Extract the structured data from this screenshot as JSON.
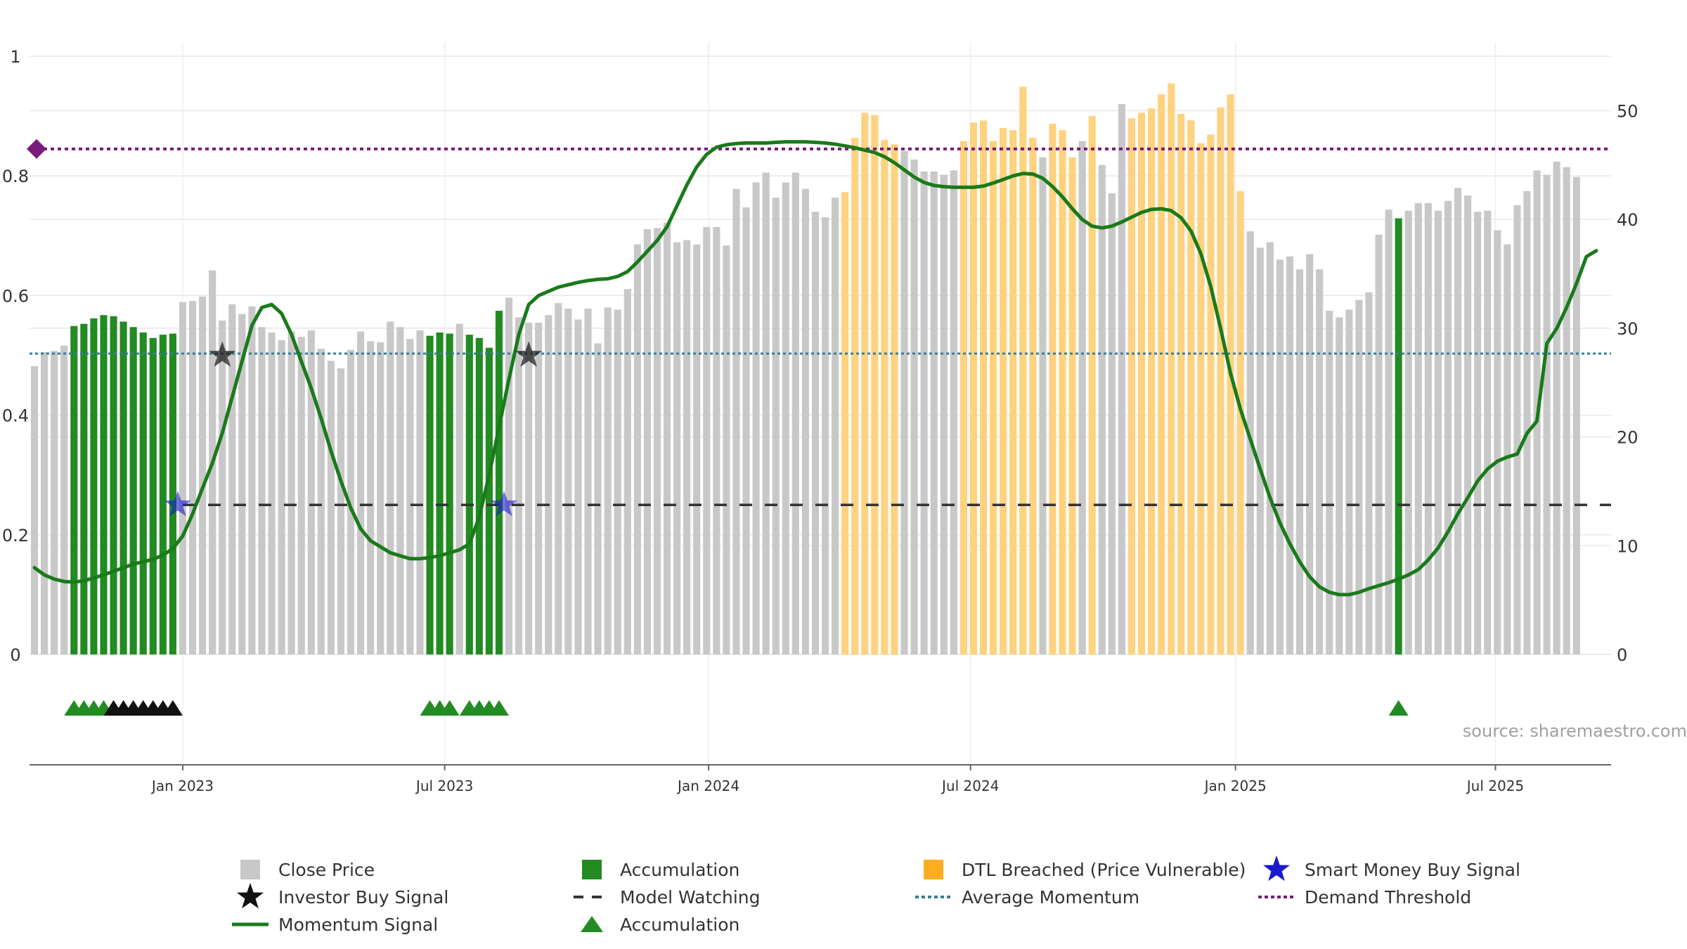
{
  "chart_data": {
    "type": "bar",
    "title": "",
    "source": "source: sharemaestro.com",
    "left_axis": {
      "range": [
        0,
        1
      ],
      "ticks": [
        {
          "v": 0,
          "label": "0"
        },
        {
          "v": 0.2,
          "label": "0.2"
        },
        {
          "v": 0.4,
          "label": "0.4"
        },
        {
          "v": 0.6,
          "label": "0.6"
        },
        {
          "v": 0.8,
          "label": "0.8"
        },
        {
          "v": 1,
          "label": "1"
        }
      ]
    },
    "right_axis": {
      "range": [
        0,
        55
      ],
      "ticks": [
        {
          "v": 0,
          "label": "0"
        },
        {
          "v": 10,
          "label": "10"
        },
        {
          "v": 20,
          "label": "20"
        },
        {
          "v": 30,
          "label": "30"
        },
        {
          "v": 40,
          "label": "40"
        },
        {
          "v": 50,
          "label": "50"
        }
      ]
    },
    "x_axis": {
      "n": 160,
      "ticks": [
        {
          "i": 15,
          "label": "Jan 2023"
        },
        {
          "i": 41.5,
          "label": "Jul 2023"
        },
        {
          "i": 68.2,
          "label": "Jan 2024"
        },
        {
          "i": 94.7,
          "label": "Jul 2024"
        },
        {
          "i": 121.5,
          "label": "Jan 2025"
        },
        {
          "i": 147.8,
          "label": "Jul 2025"
        }
      ]
    },
    "close_price": [
      26.5,
      27.8,
      27.9,
      28.4,
      30.2,
      30.4,
      30.9,
      31.2,
      31.1,
      30.6,
      30.1,
      29.6,
      29.1,
      29.4,
      29.5,
      32.4,
      32.5,
      32.9,
      35.3,
      30.7,
      32.2,
      31.3,
      32,
      30.1,
      29.6,
      28.9,
      29.7,
      29.2,
      29.8,
      28.1,
      27,
      26.3,
      28,
      29.7,
      28.8,
      28.7,
      30.6,
      30.1,
      29,
      29.8,
      29.3,
      29.6,
      29.5,
      30.4,
      29.4,
      29.1,
      28.2,
      31.6,
      32.8,
      31,
      30.5,
      30.5,
      31.2,
      32.3,
      31.8,
      30.8,
      31.8,
      28.6,
      31.9,
      31.7,
      33.6,
      37.7,
      39.1,
      39.2,
      39.7,
      37.9,
      38.1,
      37.7,
      39.3,
      39.3,
      37.6,
      42.8,
      41.1,
      43.4,
      44.3,
      42,
      43.4,
      44.3,
      42.8,
      40.7,
      40.2,
      42,
      42.5,
      47.5,
      49.8,
      49.6,
      47.3,
      46.9,
      46.3,
      45.5,
      44.4,
      44.4,
      44.1,
      44.5,
      47.2,
      48.9,
      49.1,
      47.2,
      48.4,
      48.2,
      52.2,
      47.5,
      45.7,
      48.8,
      48.2,
      45.7,
      47.2,
      49.5,
      45,
      42.4,
      50.6,
      49.3,
      49.8,
      50.2,
      51.5,
      52.5,
      49.7,
      49.1,
      47,
      47.8,
      50.3,
      51.5,
      42.6,
      38.9,
      37.4,
      37.9,
      36.3,
      36.6,
      35.4,
      36.8,
      35.4,
      31.6,
      31,
      31.7,
      32.6,
      33.3,
      38.6,
      40.9,
      40.1,
      40.8,
      41.5,
      41.5,
      40.8,
      41.7,
      42.9,
      42.2,
      40.7,
      40.8,
      39,
      37.7,
      41.3,
      42.6,
      44.5,
      44.1,
      45.3,
      44.8,
      43.9
    ],
    "bar_state": "GGGGGGGGGGGGGGGGGGGGGGGGGGGGGGGGGGGGGGGGGGGGGGGGGGGGGGGGGGGGGGGGGGGGGGGGGGGGGGGGGGGGGGGGGGGGGGGGGGGGGGGGGGGGGGGGGGGGGGGGGGGGGGGGGGGGGGGGGGGGGGGGGGGGGGGGGG",
    "accumulation_bars": [
      4,
      5,
      6,
      7,
      8,
      9,
      10,
      11,
      12,
      13,
      14,
      40,
      41,
      42,
      44,
      45,
      46,
      47,
      138
    ],
    "dtl_bars": [
      82,
      83,
      84,
      85,
      86,
      87,
      94,
      95,
      96,
      97,
      98,
      99,
      100,
      101,
      103,
      104,
      105,
      107,
      111,
      112,
      113,
      114,
      115,
      116,
      117,
      118,
      119,
      120,
      121,
      122
    ],
    "momentum": [
      0.145,
      0.133,
      0.126,
      0.122,
      0.121,
      0.123,
      0.128,
      0.133,
      0.139,
      0.145,
      0.151,
      0.155,
      0.159,
      0.166,
      0.177,
      0.198,
      0.235,
      0.278,
      0.32,
      0.37,
      0.43,
      0.49,
      0.55,
      0.58,
      0.585,
      0.57,
      0.535,
      0.49,
      0.445,
      0.395,
      0.34,
      0.29,
      0.245,
      0.21,
      0.19,
      0.18,
      0.17,
      0.165,
      0.16,
      0.16,
      0.162,
      0.165,
      0.17,
      0.175,
      0.185,
      0.23,
      0.3,
      0.38,
      0.46,
      0.535,
      0.585,
      0.6,
      0.607,
      0.614,
      0.618,
      0.622,
      0.625,
      0.627,
      0.628,
      0.632,
      0.64,
      0.656,
      0.674,
      0.692,
      0.715,
      0.75,
      0.785,
      0.815,
      0.836,
      0.848,
      0.852,
      0.854,
      0.855,
      0.855,
      0.855,
      0.856,
      0.857,
      0.857,
      0.857,
      0.856,
      0.855,
      0.853,
      0.85,
      0.847,
      0.843,
      0.839,
      0.832,
      0.822,
      0.81,
      0.798,
      0.789,
      0.784,
      0.782,
      0.781,
      0.781,
      0.781,
      0.783,
      0.788,
      0.794,
      0.8,
      0.804,
      0.803,
      0.796,
      0.782,
      0.765,
      0.745,
      0.727,
      0.716,
      0.713,
      0.716,
      0.723,
      0.731,
      0.739,
      0.744,
      0.745,
      0.742,
      0.73,
      0.708,
      0.67,
      0.615,
      0.545,
      0.47,
      0.41,
      0.36,
      0.31,
      0.262,
      0.22,
      0.185,
      0.155,
      0.13,
      0.113,
      0.104,
      0.1,
      0.1,
      0.104,
      0.11,
      0.115,
      0.12,
      0.126,
      0.133,
      0.142,
      0.158,
      0.178,
      0.205,
      0.235,
      0.262,
      0.29,
      0.31,
      0.323,
      0.33,
      0.335,
      0.37,
      0.39,
      0.52,
      0.545,
      0.58,
      0.62,
      0.665,
      0.675
    ],
    "average_momentum": 0.503,
    "model_watching_level": 0.25,
    "model_watching_start": 15,
    "demand_threshold": 0.845,
    "investor_buy_signals": [
      {
        "i": 19,
        "v": 0.5
      },
      {
        "i": 50,
        "v": 0.5
      }
    ],
    "smart_money_buy_signals": [
      {
        "i": 14.5,
        "v": 0.25
      },
      {
        "i": 47.5,
        "v": 0.25
      }
    ],
    "markers_accumulation": [
      4,
      5,
      6,
      7,
      8,
      40,
      41,
      42,
      44,
      45,
      46,
      47,
      138
    ],
    "markers_investor": [
      8,
      9,
      10,
      11,
      12,
      13,
      14
    ],
    "legend": [
      {
        "kind": "close",
        "label": "Close Price"
      },
      {
        "kind": "accum_bar",
        "label": "Accumulation"
      },
      {
        "kind": "dtl",
        "label": "DTL Breached (Price Vulnerable)"
      },
      {
        "kind": "smart_star",
        "label": "Smart Money Buy Signal"
      },
      {
        "kind": "investor_star",
        "label": "Investor Buy Signal"
      },
      {
        "kind": "watching",
        "label": "Model Watching"
      },
      {
        "kind": "avg_mom",
        "label": "Average Momentum"
      },
      {
        "kind": "demand",
        "label": "Demand Threshold"
      },
      {
        "kind": "momentum",
        "label": "Momentum Signal"
      },
      {
        "kind": "accum_tri",
        "label": "Accumulation"
      }
    ],
    "colors": {
      "close": "#c8c8c8",
      "accumulation": "#228b22",
      "dtl": "#ffd27f",
      "momentum": "#1a7a1a",
      "average_momentum": "#3a7d99",
      "demand": "#7a1a7a",
      "watching": "#333333",
      "smart_money": "#1a1acd",
      "investor": "#111111",
      "grid": "#e8e8e8",
      "axis_text": "#333333"
    }
  }
}
